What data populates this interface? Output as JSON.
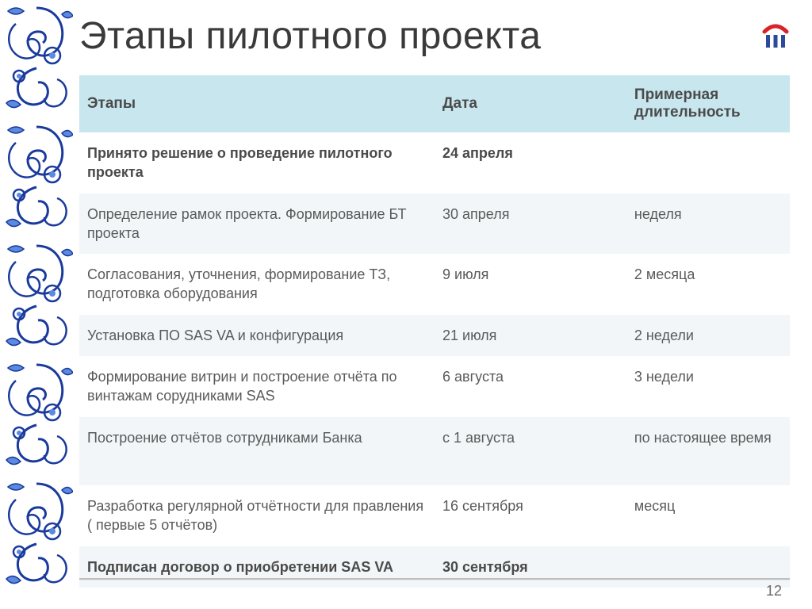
{
  "title": "Этапы пилотного проекта",
  "page_number": "12",
  "logo_colors": {
    "roof": "#d8232a",
    "pillars": "#2b4a9b"
  },
  "ornament_colors": {
    "stroke": "#1a3a9c",
    "fill_light": "#5b8ae0"
  },
  "table": {
    "header_bg": "#c8e6ee",
    "row_alt_bg": "#f2f6f8",
    "columns": [
      "Этапы",
      "Дата",
      "Примерная длительность"
    ],
    "rows": [
      {
        "stage": "Принято решение о проведение пилотного проекта",
        "date": "24 апреля",
        "duration": "",
        "bold": true,
        "alt": false
      },
      {
        "stage": "Определение рамок проекта. Формирование БТ проекта",
        "date": "30 апреля",
        "duration": "неделя",
        "bold": false,
        "alt": true
      },
      {
        "stage": "Согласования, уточнения, формирование ТЗ, подготовка оборудования",
        "date": "9 июля",
        "duration": "2 месяца",
        "bold": false,
        "alt": false
      },
      {
        "stage": "Установка ПО SAS VA и конфигурация",
        "date": "21 июля",
        "duration": "2 недели",
        "bold": false,
        "alt": true
      },
      {
        "stage": "Формирование витрин и построение отчёта по винтажам сорудниками  SAS",
        "date": "6 августа",
        "duration": "3 недели",
        "bold": false,
        "alt": false
      },
      {
        "stage": "Построение отчётов сотрудниками  Банка",
        "date": "с 1 августа",
        "duration": "по настоящее время",
        "bold": false,
        "alt": true,
        "tall": true
      },
      {
        "stage": "Разработка регулярной отчётности для правления ( первые 5 отчётов)",
        "date": "16 сентября",
        "duration": "месяц",
        "bold": false,
        "alt": false
      },
      {
        "stage": "Подписан договор о приобретении SAS VA",
        "date": "30 сентября",
        "duration": "",
        "bold": true,
        "alt": true
      }
    ]
  }
}
